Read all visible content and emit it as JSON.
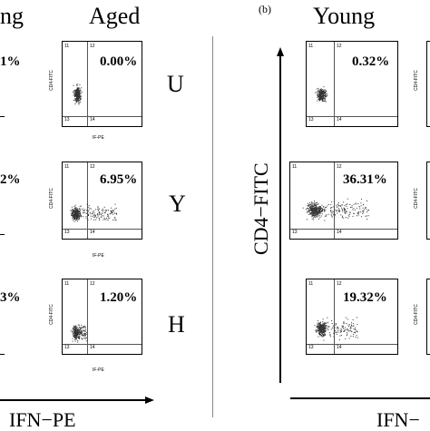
{
  "panel_a": {
    "header_left": "ng",
    "header_right": "Aged",
    "rows": [
      {
        "label": "U",
        "left_pct": "1%",
        "right_pct": "0.00%"
      },
      {
        "label": "Y",
        "left_pct": "2%",
        "right_pct": "6.95%"
      },
      {
        "label": "H",
        "left_pct": "3%",
        "right_pct": "1.20%"
      }
    ],
    "x_axis": "IFN−PE"
  },
  "panel_b": {
    "tag": "(b)",
    "header": "Young",
    "y_axis": "CD4−FITC",
    "rows": [
      {
        "pct": "0.32%"
      },
      {
        "pct": "36.31%"
      },
      {
        "pct": "19.32%"
      }
    ],
    "x_axis": "IFN−"
  },
  "plot_labels": {
    "q1": "11",
    "q2": "12",
    "q3": "13",
    "q4": "14",
    "ylabel": "CD4-FITC",
    "xlabel": "IF-PE",
    "t10": "10",
    "t0": "0",
    "t1": "1",
    "t2": "2",
    "t3": "3"
  }
}
